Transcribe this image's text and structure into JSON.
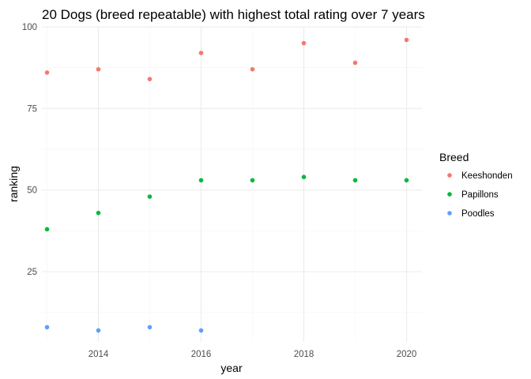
{
  "chart_data": {
    "type": "scatter",
    "title": "20 Dogs (breed repeatable) with highest total rating over 7 years",
    "xlabel": "year",
    "ylabel": "ranking",
    "xlim": [
      2012.9,
      2020.3
    ],
    "ylim": [
      3.5,
      100
    ],
    "xticks": [
      2014,
      2016,
      2018,
      2020
    ],
    "yticks": [
      25,
      50,
      75,
      100
    ],
    "x_minor": [
      2013,
      2015,
      2017,
      2019
    ],
    "y_minor": [
      12.5,
      37.5,
      62.5,
      87.5
    ],
    "legend_title": "Breed",
    "legend_position": "right",
    "grid": true,
    "series": [
      {
        "name": "Keeshonden",
        "color": "#F8766D",
        "x": [
          2013,
          2014,
          2015,
          2016,
          2017,
          2018,
          2019,
          2020
        ],
        "y": [
          86,
          87,
          84,
          92,
          87,
          95,
          89,
          96
        ]
      },
      {
        "name": "Papillons",
        "color": "#00BA38",
        "x": [
          2013,
          2014,
          2015,
          2016,
          2017,
          2018,
          2019,
          2020
        ],
        "y": [
          38,
          43,
          48,
          53,
          53,
          54,
          53,
          53
        ]
      },
      {
        "name": "Poodles",
        "color": "#619CFF",
        "x": [
          2013,
          2014,
          2015,
          2016
        ],
        "y": [
          8,
          7,
          8,
          7
        ]
      }
    ]
  }
}
